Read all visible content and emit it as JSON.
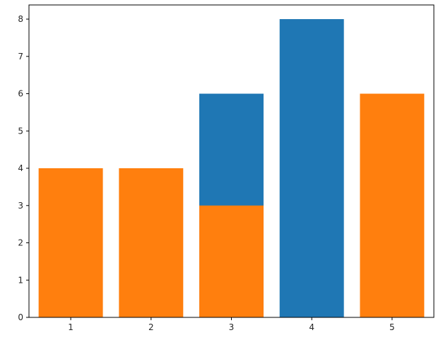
{
  "chart_data": {
    "type": "bar",
    "title": "",
    "xlabel": "",
    "ylabel": "",
    "xlim": [
      0.48,
      5.52
    ],
    "ylim": [
      0,
      8.38
    ],
    "xticks": [
      "1",
      "2",
      "3",
      "4",
      "5"
    ],
    "yticks": [
      "0",
      "1",
      "2",
      "3",
      "4",
      "5",
      "6",
      "7",
      "8"
    ],
    "grid": false,
    "bar_width": 0.8,
    "series": [
      {
        "x": [
          3,
          4
        ],
        "values": [
          6,
          8
        ],
        "color": "#1f77b4"
      },
      {
        "x": [
          1,
          2,
          3,
          5
        ],
        "values": [
          4,
          4,
          3,
          6
        ],
        "color": "#ff7f0e"
      }
    ]
  }
}
